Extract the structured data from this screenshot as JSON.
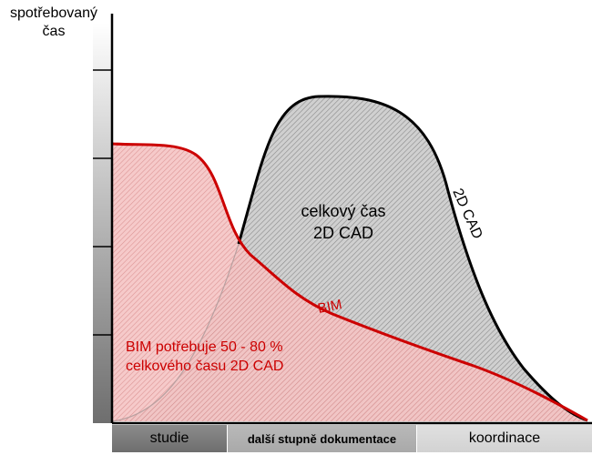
{
  "y_axis": {
    "label_line1": "spotřebovaný",
    "label_line2": "čas"
  },
  "curves": {
    "cad_label": "2D CAD",
    "bim_label": "BIM",
    "cad_area_line1": "celkový čas",
    "cad_area_line2": "2D CAD",
    "bim_note_line1": "BIM potřebuje 50 - 80 %",
    "bim_note_line2": "celkového času 2D CAD"
  },
  "phases": [
    {
      "label": "studie"
    },
    {
      "label": "další stupně dokumentace"
    },
    {
      "label": "koordinace"
    }
  ],
  "colors": {
    "bim": "#cc0000",
    "cad": "#000000",
    "bim_fill": "#f2bcbc",
    "cad_fill": "#c8c8c8"
  }
}
